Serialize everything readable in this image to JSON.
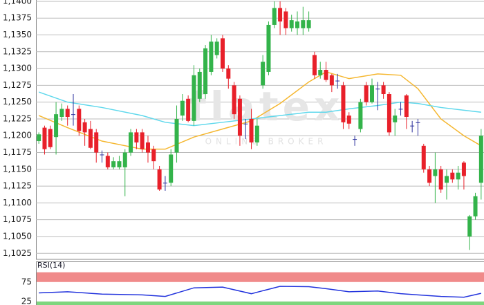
{
  "chart_data": [
    {
      "type": "candlestick",
      "watermark": {
        "text": "flatex",
        "subtext": "ONLINE BROKER"
      },
      "open": [
        1.1192,
        1.1212,
        1.121,
        1.1198,
        1.1228,
        1.124,
        1.1232,
        1.124,
        1.122,
        1.121,
        1.1205,
        1.1172,
        1.117,
        1.1153,
        1.1153,
        1.1153,
        1.1175,
        1.1205,
        1.1205,
        1.119,
        1.118,
        1.115,
        1.113,
        1.113,
        1.1175,
        1.123,
        1.1255,
        1.1222,
        1.1255,
        1.1262,
        1.1295,
        1.132,
        1.1345,
        1.13,
        1.1275,
        1.1255,
        1.1218,
        1.1225,
        1.119,
        1.1275,
        1.1295,
        1.1365,
        1.139,
        1.1385,
        1.136,
        1.136,
        1.136,
        1.136,
        1.132,
        1.129,
        1.1298,
        1.129,
        1.1282,
        1.1275,
        1.123,
        1.1195,
        1.121,
        1.1275,
        1.125,
        1.127,
        1.1275,
        1.1262,
        1.122,
        1.124,
        1.126,
        1.1215,
        1.122,
        1.1185,
        1.115,
        1.114,
        1.115,
        1.113,
        1.1145,
        1.1135,
        1.116,
        1.105,
        1.108,
        1.113
      ],
      "high": [
        1.1205,
        1.1215,
        1.1215,
        1.125,
        1.1248,
        1.1245,
        1.1262,
        1.1245,
        1.1225,
        1.1222,
        1.121,
        1.1178,
        1.1175,
        1.1168,
        1.117,
        1.118,
        1.121,
        1.121,
        1.121,
        1.12,
        1.1185,
        1.1155,
        1.114,
        1.118,
        1.1245,
        1.1262,
        1.126,
        1.1305,
        1.13,
        1.1335,
        1.135,
        1.1345,
        1.135,
        1.1305,
        1.128,
        1.126,
        1.1225,
        1.124,
        1.1225,
        1.132,
        1.137,
        1.14,
        1.14,
        1.139,
        1.138,
        1.1385,
        1.1392,
        1.1385,
        1.1325,
        1.131,
        1.131,
        1.1292,
        1.1292,
        1.128,
        1.1235,
        1.12,
        1.1255,
        1.128,
        1.1285,
        1.128,
        1.128,
        1.1265,
        1.124,
        1.125,
        1.1262,
        1.1222,
        1.1225,
        1.1188,
        1.1155,
        1.1175,
        1.1155,
        1.115,
        1.115,
        1.1155,
        1.1162,
        1.1082,
        1.1115,
        1.121
      ],
      "low": [
        1.1188,
        1.1172,
        1.118,
        1.1172,
        1.1222,
        1.1215,
        1.1215,
        1.12,
        1.1185,
        1.118,
        1.116,
        1.116,
        1.115,
        1.115,
        1.115,
        1.111,
        1.117,
        1.118,
        1.1175,
        1.116,
        1.115,
        1.1118,
        1.1118,
        1.1125,
        1.116,
        1.1222,
        1.122,
        1.1215,
        1.125,
        1.1255,
        1.129,
        1.1315,
        1.1295,
        1.127,
        1.1225,
        1.1185,
        1.1195,
        1.118,
        1.1185,
        1.127,
        1.129,
        1.136,
        1.135,
        1.135,
        1.1355,
        1.135,
        1.135,
        1.1355,
        1.1285,
        1.1285,
        1.128,
        1.1265,
        1.127,
        1.121,
        1.121,
        1.1185,
        1.1205,
        1.1245,
        1.1248,
        1.1238,
        1.1255,
        1.12,
        1.12,
        1.123,
        1.121,
        1.1205,
        1.12,
        1.1145,
        1.1125,
        1.11,
        1.1115,
        1.1105,
        1.113,
        1.112,
        1.112,
        1.103,
        1.1075,
        1.1105
      ],
      "close": [
        1.1202,
        1.118,
        1.1183,
        1.1232,
        1.124,
        1.1228,
        1.1232,
        1.1207,
        1.1205,
        1.1182,
        1.1175,
        1.1172,
        1.1153,
        1.1162,
        1.1162,
        1.1175,
        1.1205,
        1.119,
        1.118,
        1.1175,
        1.1162,
        1.112,
        1.113,
        1.1172,
        1.1225,
        1.1252,
        1.1222,
        1.129,
        1.1295,
        1.133,
        1.134,
        1.134,
        1.13,
        1.1285,
        1.1232,
        1.12,
        1.1218,
        1.119,
        1.1215,
        1.131,
        1.1365,
        1.139,
        1.137,
        1.136,
        1.1372,
        1.137,
        1.1372,
        1.1372,
        1.129,
        1.1298,
        1.1283,
        1.1275,
        1.1282,
        1.122,
        1.1218,
        1.1195,
        1.125,
        1.125,
        1.1275,
        1.127,
        1.1262,
        1.1205,
        1.123,
        1.124,
        1.1228,
        1.1215,
        1.122,
        1.115,
        1.113,
        1.115,
        1.112,
        1.114,
        1.1135,
        1.1145,
        1.114,
        1.108,
        1.111,
        1.12
      ],
      "up_color": "#33b34a",
      "down_color": "#e8202a",
      "doji_color": "#2a2f9c",
      "series": [
        {
          "color": "#f5b730",
          "x": [
            0,
            5,
            11,
            18,
            22,
            27,
            32,
            37,
            42,
            47,
            50,
            54,
            59,
            63,
            66,
            70,
            74,
            77
          ],
          "values": [
            1.123,
            1.1212,
            1.1192,
            1.118,
            1.118,
            1.1198,
            1.121,
            1.1222,
            1.1248,
            1.128,
            1.1295,
            1.1285,
            1.1292,
            1.129,
            1.127,
            1.1225,
            1.12,
            1.1185
          ]
        },
        {
          "color": "#5fd8ec",
          "x": [
            0,
            5,
            11,
            18,
            22,
            27,
            32,
            37,
            42,
            47,
            50,
            54,
            59,
            63,
            66,
            70,
            74,
            77
          ],
          "values": [
            1.1265,
            1.125,
            1.1242,
            1.123,
            1.122,
            1.1215,
            1.122,
            1.1225,
            1.123,
            1.1235,
            1.1235,
            1.124,
            1.1245,
            1.125,
            1.1248,
            1.1242,
            1.1238,
            1.1235
          ]
        }
      ],
      "ylim": [
        1.1016,
        1.1402
      ],
      "yticks": [
        {
          "value": 1.1025,
          "label": "1,1025"
        },
        {
          "value": 1.105,
          "label": "1,1050"
        },
        {
          "value": 1.1075,
          "label": "1,1075"
        },
        {
          "value": 1.11,
          "label": "1,1100"
        },
        {
          "value": 1.1125,
          "label": "1,1125"
        },
        {
          "value": 1.115,
          "label": "1,1150"
        },
        {
          "value": 1.1175,
          "label": "1,1175"
        },
        {
          "value": 1.12,
          "label": "1,1200"
        },
        {
          "value": 1.1225,
          "label": "1,1225"
        },
        {
          "value": 1.125,
          "label": "1,1250"
        },
        {
          "value": 1.1275,
          "label": "1,1275"
        },
        {
          "value": 1.13,
          "label": "1,1300"
        },
        {
          "value": 1.1325,
          "label": "1,1325"
        },
        {
          "value": 1.135,
          "label": "1,1350"
        },
        {
          "value": 1.1375,
          "label": "1,1375"
        },
        {
          "value": 1.14,
          "label": "1,1400"
        }
      ],
      "grid": true
    },
    {
      "type": "line",
      "title": "RSI(14)",
      "series": [
        {
          "color": "#2233dd",
          "x": [
            0,
            5,
            11,
            18,
            22,
            27,
            32,
            37,
            42,
            47,
            50,
            54,
            59,
            63,
            66,
            70,
            74,
            77
          ],
          "values": [
            47,
            50,
            44,
            42,
            38,
            60,
            62,
            45,
            64,
            63,
            58,
            50,
            52,
            45,
            42,
            38,
            36,
            46
          ]
        }
      ],
      "zones": [
        {
          "from": 75,
          "to": 100,
          "color": "#f08a8a"
        },
        {
          "from": 16,
          "to": 25,
          "color": "#7ed67e"
        }
      ],
      "ylim": [
        16,
        103
      ],
      "yticks": [
        25,
        75
      ]
    }
  ]
}
